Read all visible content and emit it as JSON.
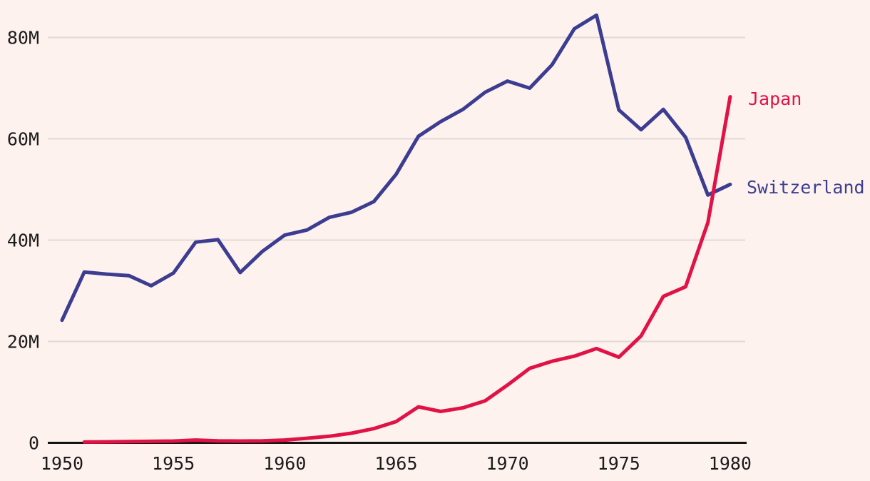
{
  "colors": {
    "background": "#fdf2ee",
    "gridline": "#e0d9d6",
    "axis": "#141414",
    "text": "#1c1c1c",
    "japan": "#e01246",
    "switzerland": "#3c3d91"
  },
  "chart_data": {
    "type": "line",
    "title": "",
    "xlabel": "",
    "ylabel": "",
    "unit": "M",
    "grid": "horizontal",
    "legend_position": "right-end-of-line",
    "xlim": [
      1950,
      1980
    ],
    "ylim": [
      0,
      85
    ],
    "xticks": [
      {
        "value": 1950,
        "label": "1950"
      },
      {
        "value": 1955,
        "label": "1955"
      },
      {
        "value": 1960,
        "label": "1960"
      },
      {
        "value": 1965,
        "label": "1965"
      },
      {
        "value": 1970,
        "label": "1970"
      },
      {
        "value": 1975,
        "label": "1975"
      },
      {
        "value": 1980,
        "label": "1980"
      }
    ],
    "yticks": [
      {
        "value": 0,
        "label": "0"
      },
      {
        "value": 20,
        "label": "20M"
      },
      {
        "value": 40,
        "label": "40M"
      },
      {
        "value": 60,
        "label": "60M"
      },
      {
        "value": 80,
        "label": "80M"
      }
    ],
    "x": [
      1950,
      1951,
      1952,
      1953,
      1954,
      1955,
      1956,
      1957,
      1958,
      1959,
      1960,
      1961,
      1962,
      1963,
      1964,
      1965,
      1966,
      1967,
      1968,
      1969,
      1970,
      1971,
      1972,
      1973,
      1974,
      1975,
      1976,
      1977,
      1978,
      1979,
      1980
    ],
    "series": [
      {
        "name": "Switzerland",
        "color": "#3c3d91",
        "values": [
          24.2,
          33.7,
          33.3,
          33.0,
          31.0,
          33.5,
          39.6,
          40.1,
          33.6,
          37.8,
          41.0,
          42.0,
          44.5,
          45.5,
          47.6,
          53.0,
          60.5,
          63.4,
          65.8,
          69.2,
          71.4,
          70.0,
          74.6,
          81.7,
          84.4,
          65.7,
          61.8,
          65.8,
          60.3,
          48.9,
          51.0
        ]
      },
      {
        "name": "Japan",
        "color": "#e01246",
        "values": [
          null,
          0.15,
          0.2,
          0.25,
          0.3,
          0.35,
          0.55,
          0.4,
          0.35,
          0.4,
          0.55,
          0.9,
          1.3,
          1.9,
          2.8,
          4.2,
          7.1,
          6.2,
          6.9,
          8.3,
          11.4,
          14.7,
          16.1,
          17.1,
          18.6,
          16.9,
          21.1,
          28.9,
          30.8,
          43.5,
          68.3
        ]
      }
    ]
  }
}
